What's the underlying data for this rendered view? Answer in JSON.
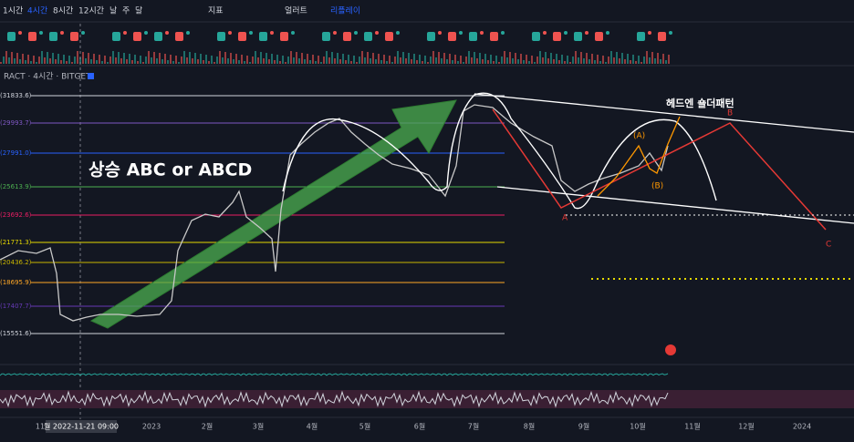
{
  "toolbar": {
    "intervals": [
      "1시간",
      "4시간",
      "8시간",
      "12시간",
      "날",
      "주",
      "달"
    ],
    "indicators": "지표",
    "alert": "얼러트",
    "replay": "리플레이"
  },
  "symbol": "RACT · 4시간 · BITGET",
  "fib_levels": [
    {
      "label": "(31833.6)",
      "color": "#d1d4dc"
    },
    {
      "label": "(29993.7)",
      "color": "#7e57c2"
    },
    {
      "label": "(27991.0)",
      "color": "#2962ff"
    },
    {
      "label": "(25613.9)",
      "color": "#4caf50"
    },
    {
      "label": "(23692.6)",
      "color": "#e91e63"
    },
    {
      "label": "(21771.3)",
      "color": "#e5d800"
    },
    {
      "label": "(20436.2)",
      "color": "#c8b400"
    },
    {
      "label": "(18695.9)",
      "color": "#ffa726"
    },
    {
      "label": "(17407.7)",
      "color": "#673ab7"
    },
    {
      "label": "(15551.6)",
      "color": "#d1d4dc"
    }
  ],
  "annotations": {
    "trend": "상승 ABC or ABCD",
    "pattern": "헤드엔 숄더패턴",
    "wave_a": "A",
    "wave_b": "B",
    "wave_c": "C",
    "sub_a": "(A)",
    "sub_b": "(B)"
  },
  "x_axis": {
    "labels": [
      "11",
      "2023",
      "2월",
      "3월",
      "4월",
      "5월",
      "6월",
      "7월",
      "8월",
      "9월",
      "10월",
      "11월",
      "12월",
      "2024"
    ],
    "crosshair": "월 2022-11-21  09:00"
  }
}
